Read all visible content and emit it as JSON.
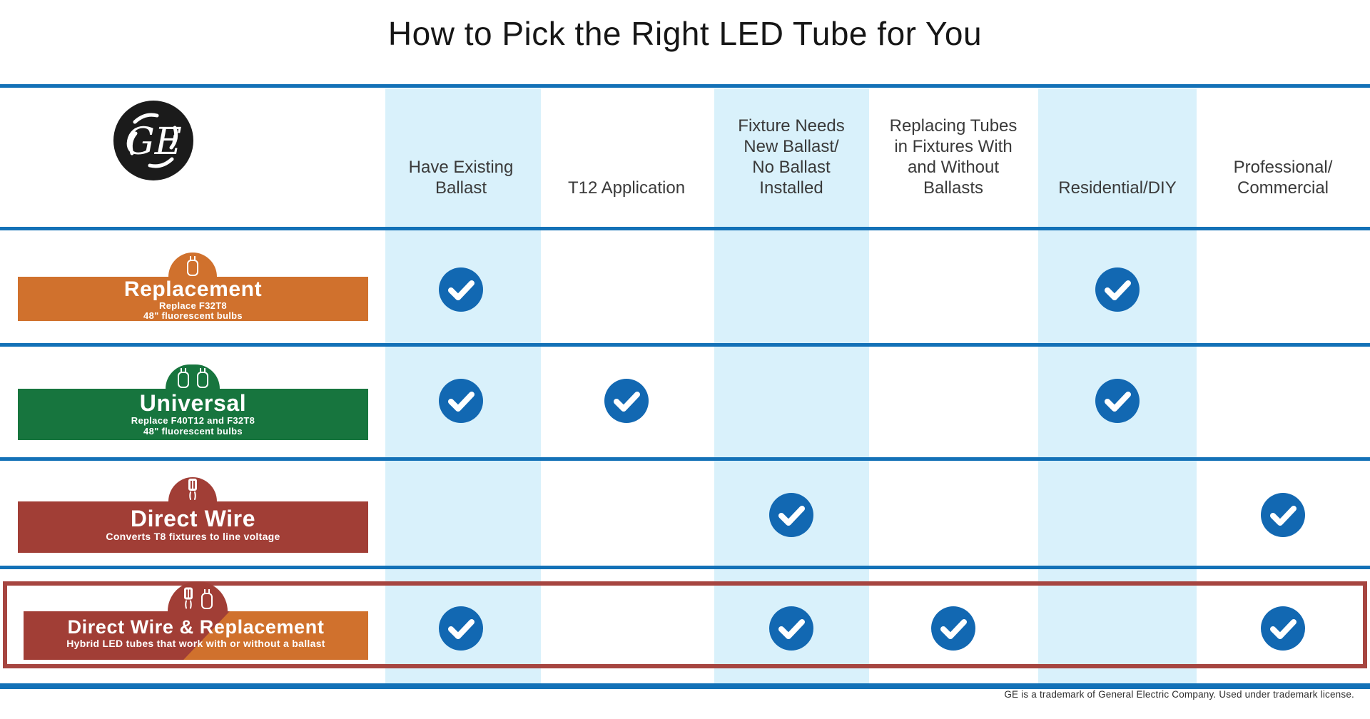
{
  "title": "How to Pick the Right LED Tube for You",
  "footnote": "GE is a trademark of General Electric Company. Used under trademark license.",
  "logo": {
    "name": "GE monogram",
    "letters": "GE"
  },
  "colors": {
    "ge_blue": "#1371b7",
    "check_blue": "#1268b2",
    "stripe_light_blue": "#d9f1fb",
    "orange": "#d0712d",
    "green": "#17753e",
    "maroon": "#a13e36",
    "highlight_border": "#a64540"
  },
  "columns": [
    {
      "label": "Have Existing Ballast",
      "lines": [
        "Have Existing",
        "Ballast"
      ],
      "shaded": true
    },
    {
      "label": "T12 Application",
      "lines": [
        "T12 Application"
      ],
      "shaded": false
    },
    {
      "label": "Fixture Needs New Ballast/ No Ballast Installed",
      "lines": [
        "Fixture Needs",
        "New Ballast/",
        "No Ballast",
        "Installed"
      ],
      "shaded": true
    },
    {
      "label": "Replacing Tubes in Fixtures With and Without Ballasts",
      "lines": [
        "Replacing Tubes",
        "in Fixtures With",
        "and Without",
        "Ballasts"
      ],
      "shaded": false
    },
    {
      "label": "Residential/DIY",
      "lines": [
        "Residential/DIY"
      ],
      "shaded": true
    },
    {
      "label": "Professional/ Commercial",
      "lines": [
        "Professional/",
        "Commercial"
      ],
      "shaded": false
    }
  ],
  "rows": [
    {
      "name": "Replacement",
      "subtext": [
        "Replace F32T8",
        "48\" fluorescent bulbs"
      ],
      "color": "#d0712d",
      "icon": "tube-icon",
      "checks": [
        1,
        0,
        0,
        0,
        1,
        0
      ],
      "highlighted": false
    },
    {
      "name": "Universal",
      "subtext": [
        "Replace F40T12 and F32T8",
        "48\" fluorescent bulbs"
      ],
      "color": "#17753e",
      "icon": "double-tube-icon",
      "checks": [
        1,
        1,
        0,
        0,
        1,
        0
      ],
      "highlighted": false
    },
    {
      "name": "Direct Wire",
      "subtext": [
        "Converts T8 fixtures to line voltage"
      ],
      "color": "#a13e36",
      "icon": "wire-tube-icon",
      "checks": [
        0,
        0,
        1,
        0,
        0,
        1
      ],
      "highlighted": false
    },
    {
      "name": "Direct Wire & Replacement",
      "subtext": [
        "Hybrid LED tubes that work with or without a ballast"
      ],
      "color": "#a13e36/#d0712d",
      "icon": "wire-and-tube-icon",
      "checks": [
        1,
        0,
        1,
        1,
        0,
        1
      ],
      "highlighted": true
    }
  ],
  "chart_data": {
    "type": "table",
    "title": "How to Pick the Right LED Tube for You",
    "columns": [
      "Have Existing Ballast",
      "T12 Application",
      "Fixture Needs New Ballast/ No Ballast Installed",
      "Replacing Tubes in Fixtures With and Without Ballasts",
      "Residential/DIY",
      "Professional/Commercial"
    ],
    "rows": [
      {
        "name": "Replacement",
        "description": "Replace F32T8 48\" fluorescent bulbs",
        "checked": [
          true,
          false,
          false,
          false,
          true,
          false
        ]
      },
      {
        "name": "Universal",
        "description": "Replace F40T12 and F32T8 48\" fluorescent bulbs",
        "checked": [
          true,
          true,
          false,
          false,
          true,
          false
        ]
      },
      {
        "name": "Direct Wire",
        "description": "Converts T8 fixtures to line voltage",
        "checked": [
          false,
          false,
          true,
          false,
          false,
          true
        ]
      },
      {
        "name": "Direct Wire & Replacement",
        "description": "Hybrid LED tubes that work with or without a ballast",
        "checked": [
          true,
          false,
          true,
          true,
          false,
          true
        ]
      }
    ],
    "legend_position": "none",
    "notes": "Blue circle check = product applies to scenario; row 'Direct Wire & Replacement' is outlined with a dark-red highlight box"
  }
}
